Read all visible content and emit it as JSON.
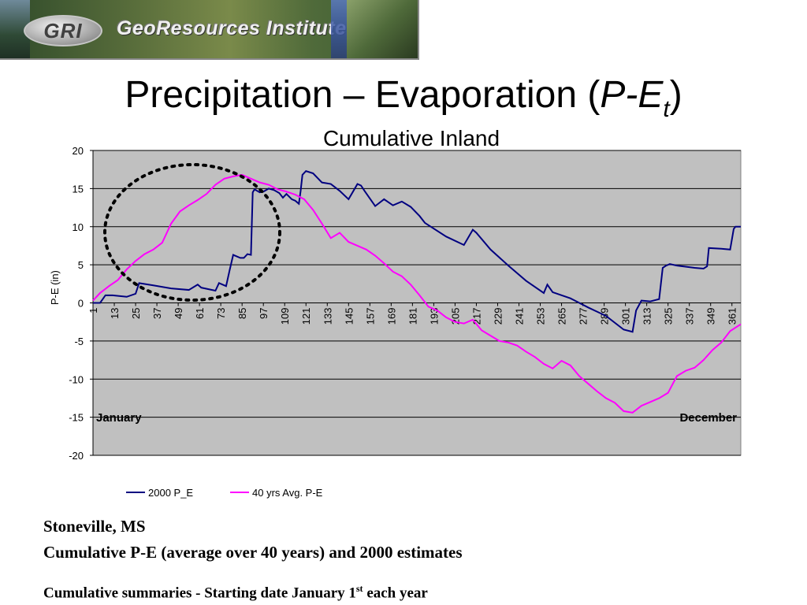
{
  "banner": {
    "logo": "GRI",
    "name": "GeoResources Institute"
  },
  "title": {
    "pre": "Precipitation – Evaporation (",
    "p": "P-E",
    "sub": "t",
    "post": ")"
  },
  "subtitle": "Cumulative Inland",
  "chart_data": {
    "type": "line",
    "title": "Cumulative Inland",
    "xlabel": "",
    "ylabel": "P-E (in)",
    "ylim": [
      -20,
      20
    ],
    "yticks": [
      20,
      15,
      10,
      5,
      0,
      -5,
      -10,
      -15,
      -20
    ],
    "xlim": [
      1,
      366
    ],
    "xticks": [
      1,
      13,
      25,
      37,
      49,
      61,
      73,
      85,
      97,
      109,
      121,
      133,
      145,
      157,
      169,
      181,
      193,
      205,
      217,
      229,
      241,
      253,
      265,
      277,
      289,
      301,
      313,
      325,
      337,
      349,
      361
    ],
    "grid": true,
    "legend": "bottom",
    "annotations": {
      "left": "January",
      "right": "December"
    },
    "series": [
      {
        "name": "2000 P_E",
        "color": "#000080",
        "x": [
          1,
          5,
          8,
          12,
          20,
          25,
          27,
          35,
          45,
          55,
          60,
          62,
          70,
          72,
          76,
          78,
          80,
          84,
          86,
          88,
          90,
          91,
          92,
          95,
          97,
          100,
          103,
          106,
          108,
          110,
          113,
          115,
          117,
          118,
          119,
          121,
          125,
          130,
          135,
          140,
          145,
          150,
          152,
          154,
          160,
          165,
          170,
          175,
          180,
          185,
          188,
          200,
          210,
          215,
          217,
          225,
          235,
          245,
          255,
          257,
          260,
          265,
          270,
          280,
          290,
          300,
          305,
          307,
          310,
          315,
          320,
          322,
          324,
          326,
          330,
          340,
          345,
          347,
          348,
          355,
          360,
          362,
          363,
          366
        ],
        "y": [
          0,
          0,
          1,
          1,
          0.8,
          1.2,
          2.6,
          2.3,
          1.9,
          1.7,
          2.4,
          2.0,
          1.6,
          2.6,
          2.2,
          4.3,
          6.3,
          5.9,
          5.9,
          6.4,
          6.3,
          14.5,
          14.9,
          14.5,
          14.6,
          15.0,
          14.8,
          14.4,
          13.8,
          14.3,
          13.6,
          13.4,
          13.0,
          14.7,
          16.8,
          17.3,
          17.0,
          15.8,
          15.6,
          14.7,
          13.6,
          15.6,
          15.4,
          14.7,
          12.7,
          13.6,
          12.8,
          13.3,
          12.6,
          11.4,
          10.5,
          8.7,
          7.6,
          9.6,
          9.2,
          7.0,
          4.9,
          2.9,
          1.3,
          2.4,
          1.4,
          1.0,
          0.6,
          -0.6,
          -1.7,
          -3.5,
          -3.8,
          -1.0,
          0.3,
          0.2,
          0.5,
          4.6,
          4.9,
          5.1,
          4.9,
          4.6,
          4.5,
          4.8,
          7.2,
          7.1,
          7.0,
          9.7,
          10.0,
          10.0
        ]
      },
      {
        "name": "40 yrs Avg. P-E",
        "color": "#ff00ff",
        "x": [
          1,
          5,
          10,
          15,
          20,
          25,
          30,
          35,
          40,
          45,
          50,
          55,
          60,
          65,
          70,
          75,
          80,
          85,
          90,
          95,
          100,
          105,
          110,
          115,
          120,
          125,
          130,
          135,
          140,
          145,
          150,
          155,
          160,
          165,
          170,
          175,
          180,
          185,
          190,
          195,
          200,
          205,
          210,
          215,
          220,
          225,
          230,
          235,
          240,
          245,
          250,
          255,
          260,
          265,
          270,
          275,
          280,
          285,
          290,
          295,
          300,
          305,
          310,
          315,
          320,
          325,
          330,
          335,
          340,
          345,
          350,
          355,
          360,
          366
        ],
        "y": [
          0.3,
          1.3,
          2.2,
          3.0,
          4.4,
          5.5,
          6.4,
          7.0,
          7.9,
          10.4,
          12.0,
          12.8,
          13.5,
          14.3,
          15.5,
          16.3,
          16.6,
          16.8,
          16.3,
          15.8,
          15.5,
          14.9,
          14.6,
          14.2,
          13.6,
          12.2,
          10.4,
          8.5,
          9.2,
          8.0,
          7.5,
          7.0,
          6.2,
          5.2,
          4.1,
          3.5,
          2.4,
          1.0,
          -0.5,
          -1.0,
          -1.9,
          -2.5,
          -2.7,
          -2.2,
          -3.6,
          -4.3,
          -5.0,
          -5.2,
          -5.6,
          -6.4,
          -7.1,
          -8.0,
          -8.6,
          -7.6,
          -8.2,
          -9.6,
          -10.6,
          -11.6,
          -12.5,
          -13.1,
          -14.2,
          -14.4,
          -13.5,
          -13.0,
          -12.5,
          -11.8,
          -9.6,
          -8.9,
          -8.5,
          -7.5,
          -6.2,
          -5.2,
          -3.7,
          -2.8
        ]
      }
    ]
  },
  "captions": {
    "line1": "Stoneville, MS",
    "line2": "Cumulative P-E (average over 40 years) and 2000 estimates",
    "line3_pre": "Cumulative summaries - Starting date January 1",
    "line3_sup": "st",
    "line3_post": " each year"
  }
}
